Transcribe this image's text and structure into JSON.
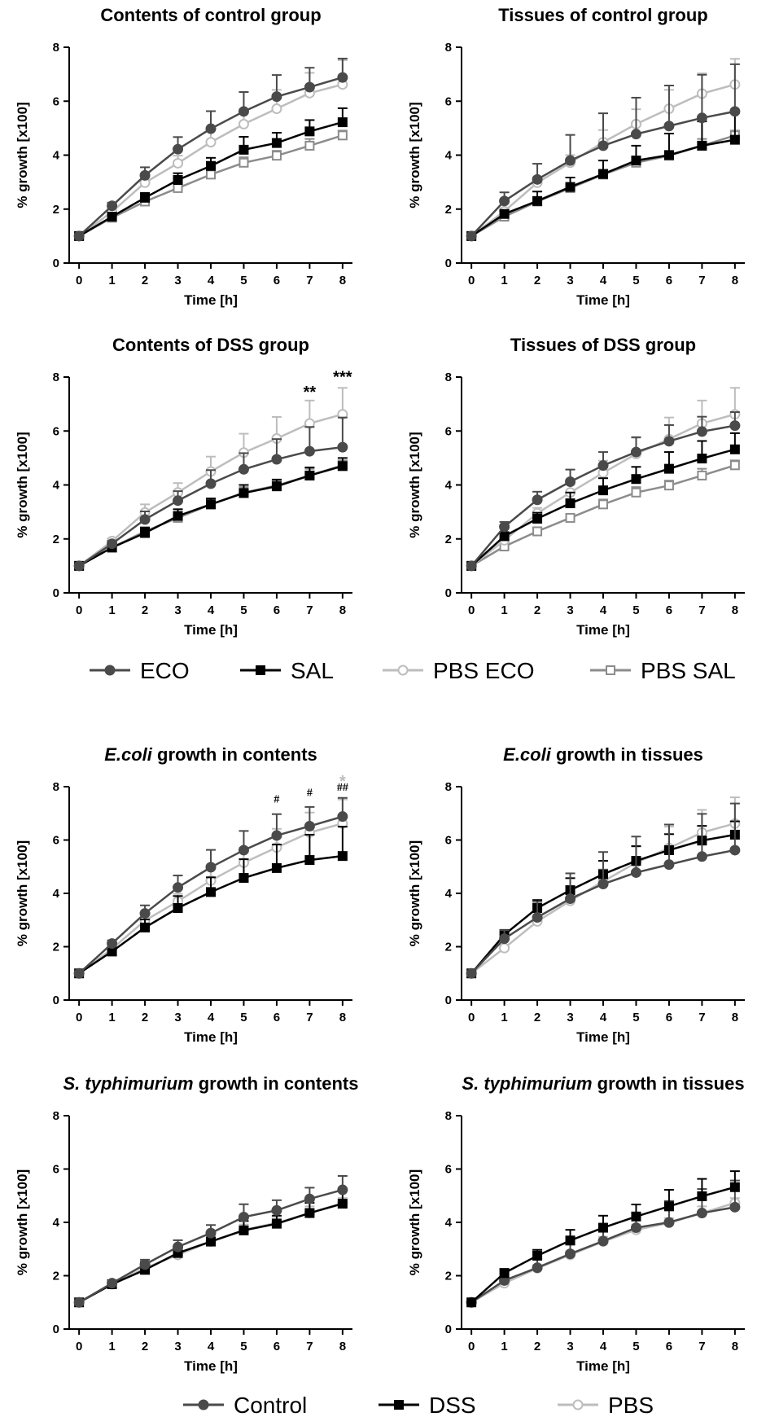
{
  "colors": {
    "ECO": "#4a4a4a",
    "SAL": "#000000",
    "PBS ECO": "#bdbdbd",
    "PBS SAL": "#8c8c8c",
    "Control": "#4a4a4a",
    "DSS": "#000000",
    "PBS": "#bdbdbd"
  },
  "legends": [
    {
      "entries": [
        {
          "label": "ECO",
          "marker": "filled-circle"
        },
        {
          "label": "SAL",
          "marker": "filled-square"
        },
        {
          "label": "PBS ECO",
          "marker": "open-circle"
        },
        {
          "label": "PBS SAL",
          "marker": "open-square"
        }
      ]
    },
    {
      "entries": [
        {
          "label": "Control",
          "marker": "filled-circle"
        },
        {
          "label": "DSS",
          "marker": "filled-square"
        },
        {
          "label": "PBS",
          "marker": "open-circle"
        }
      ]
    }
  ],
  "chart_data": [
    {
      "type": "line",
      "title": "Contents of control group",
      "xlabel": "Time [h]",
      "ylabel": "% growth [x100]",
      "x": [
        0,
        1,
        2,
        3,
        4,
        5,
        6,
        7,
        8
      ],
      "ylim": [
        0,
        8
      ],
      "yticks": [
        0,
        2,
        4,
        6,
        8
      ],
      "series": [
        {
          "name": "PBS SAL",
          "marker": "open-square",
          "values": [
            1.0,
            1.68,
            2.28,
            2.78,
            3.28,
            3.72,
            3.98,
            4.35,
            4.73
          ],
          "errors": [
            0.02,
            0.06,
            0.12,
            0.14,
            0.18,
            0.2,
            0.18,
            0.25,
            0.18
          ]
        },
        {
          "name": "PBS ECO",
          "marker": "open-circle",
          "values": [
            1.0,
            1.9,
            2.98,
            3.7,
            4.48,
            5.15,
            5.72,
            6.3,
            6.62
          ],
          "errors": [
            0.02,
            0.1,
            0.2,
            0.28,
            0.45,
            0.55,
            0.7,
            0.75,
            0.9
          ]
        },
        {
          "name": "SAL",
          "marker": "filled-square",
          "values": [
            1.0,
            1.72,
            2.42,
            3.08,
            3.6,
            4.2,
            4.45,
            4.88,
            5.22
          ],
          "errors": [
            0.02,
            0.08,
            0.18,
            0.25,
            0.3,
            0.48,
            0.38,
            0.42,
            0.52
          ]
        },
        {
          "name": "ECO",
          "marker": "filled-circle",
          "values": [
            1.0,
            2.12,
            3.25,
            4.22,
            4.98,
            5.62,
            6.17,
            6.52,
            6.88
          ],
          "errors": [
            0.02,
            0.12,
            0.3,
            0.45,
            0.65,
            0.72,
            0.8,
            0.72,
            0.7
          ]
        }
      ],
      "annotations": []
    },
    {
      "type": "line",
      "title": "Tissues of control group",
      "xlabel": "Time [h]",
      "ylabel": "% growth [x100]",
      "x": [
        0,
        1,
        2,
        3,
        4,
        5,
        6,
        7,
        8
      ],
      "ylim": [
        0,
        8
      ],
      "yticks": [
        0,
        2,
        4,
        6,
        8
      ],
      "series": [
        {
          "name": "PBS SAL",
          "marker": "open-square",
          "values": [
            1.0,
            1.72,
            2.28,
            2.78,
            3.28,
            3.72,
            3.98,
            4.35,
            4.73
          ],
          "errors": [
            0.02,
            0.06,
            0.12,
            0.14,
            0.18,
            0.2,
            0.18,
            0.25,
            0.18
          ]
        },
        {
          "name": "PBS ECO",
          "marker": "open-circle",
          "values": [
            1.0,
            1.92,
            2.98,
            3.72,
            4.48,
            5.15,
            5.72,
            6.28,
            6.62
          ],
          "errors": [
            0.02,
            0.1,
            0.2,
            0.28,
            0.45,
            0.55,
            0.7,
            0.75,
            0.95
          ]
        },
        {
          "name": "SAL",
          "marker": "filled-square",
          "values": [
            1.0,
            1.82,
            2.3,
            2.82,
            3.3,
            3.8,
            4.0,
            4.35,
            4.57
          ],
          "errors": [
            0.02,
            0.1,
            0.35,
            0.35,
            0.5,
            0.55,
            0.8,
            0.9,
            1.0
          ]
        },
        {
          "name": "ECO",
          "marker": "filled-circle",
          "values": [
            1.0,
            2.3,
            3.1,
            3.8,
            4.35,
            4.78,
            5.08,
            5.38,
            5.62
          ],
          "errors": [
            0.02,
            0.32,
            0.58,
            0.95,
            1.2,
            1.35,
            1.5,
            1.6,
            1.75
          ]
        }
      ],
      "annotations": []
    },
    {
      "type": "line",
      "title": "Contents of DSS group",
      "xlabel": "Time [h]",
      "ylabel": "% growth [x100]",
      "x": [
        0,
        1,
        2,
        3,
        4,
        5,
        6,
        7,
        8
      ],
      "ylim": [
        0,
        8
      ],
      "yticks": [
        0,
        2,
        4,
        6,
        8
      ],
      "series": [
        {
          "name": "PBS SAL",
          "marker": "open-square",
          "values": [
            1.0,
            1.68,
            2.28,
            2.78,
            3.28,
            3.72,
            3.98,
            4.35,
            4.73
          ],
          "errors": [
            0.02,
            0.06,
            0.12,
            0.14,
            0.18,
            0.2,
            0.18,
            0.25,
            0.18
          ]
        },
        {
          "name": "PBS ECO",
          "marker": "open-circle",
          "values": [
            1.0,
            1.92,
            2.98,
            3.72,
            4.5,
            5.2,
            5.72,
            6.28,
            6.62
          ],
          "errors": [
            0.02,
            0.1,
            0.3,
            0.35,
            0.55,
            0.7,
            0.8,
            0.85,
            0.98
          ]
        },
        {
          "name": "SAL",
          "marker": "filled-square",
          "values": [
            1.0,
            1.68,
            2.22,
            2.85,
            3.28,
            3.7,
            3.95,
            4.35,
            4.7
          ],
          "errors": [
            0.02,
            0.08,
            0.2,
            0.25,
            0.22,
            0.3,
            0.25,
            0.3,
            0.3
          ]
        },
        {
          "name": "ECO",
          "marker": "filled-circle",
          "values": [
            1.0,
            1.82,
            2.72,
            3.42,
            4.05,
            4.58,
            4.95,
            5.25,
            5.4
          ],
          "errors": [
            0.02,
            0.1,
            0.3,
            0.35,
            0.5,
            0.6,
            0.75,
            0.9,
            1.1
          ]
        }
      ],
      "annotations": [
        {
          "x": 7,
          "y": 7.55,
          "text": "**",
          "color": "#000000"
        },
        {
          "x": 8,
          "y": 8.1,
          "text": "***",
          "color": "#000000"
        }
      ]
    },
    {
      "type": "line",
      "title": "Tissues of DSS group",
      "xlabel": "Time [h]",
      "ylabel": "% growth [x100]",
      "x": [
        0,
        1,
        2,
        3,
        4,
        5,
        6,
        7,
        8
      ],
      "ylim": [
        0,
        8
      ],
      "yticks": [
        0,
        2,
        4,
        6,
        8
      ],
      "series": [
        {
          "name": "PBS SAL",
          "marker": "open-square",
          "values": [
            1.0,
            1.72,
            2.28,
            2.78,
            3.28,
            3.72,
            3.98,
            4.35,
            4.73
          ],
          "errors": [
            0.02,
            0.06,
            0.12,
            0.14,
            0.18,
            0.2,
            0.18,
            0.25,
            0.18
          ]
        },
        {
          "name": "PBS ECO",
          "marker": "open-circle",
          "values": [
            1.0,
            1.95,
            2.95,
            3.72,
            4.45,
            5.15,
            5.7,
            6.28,
            6.62
          ],
          "errors": [
            0.02,
            0.1,
            0.2,
            0.3,
            0.45,
            0.6,
            0.8,
            0.85,
            0.98
          ]
        },
        {
          "name": "SAL",
          "marker": "filled-square",
          "values": [
            1.0,
            2.1,
            2.75,
            3.32,
            3.8,
            4.22,
            4.6,
            4.98,
            5.32
          ],
          "errors": [
            0.02,
            0.15,
            0.22,
            0.4,
            0.45,
            0.45,
            0.62,
            0.65,
            0.6
          ]
        },
        {
          "name": "ECO",
          "marker": "filled-circle",
          "values": [
            1.0,
            2.45,
            3.45,
            4.12,
            4.72,
            5.22,
            5.62,
            5.98,
            6.2
          ],
          "errors": [
            0.02,
            0.18,
            0.3,
            0.45,
            0.5,
            0.55,
            0.6,
            0.55,
            0.5
          ]
        }
      ],
      "annotations": []
    },
    {
      "type": "line",
      "title": "E.coli growth in contents",
      "title_italic": "E.coli",
      "title_rest": " growth in contents",
      "xlabel": "Time [h]",
      "ylabel": "% growth [x100]",
      "x": [
        0,
        1,
        2,
        3,
        4,
        5,
        6,
        7,
        8
      ],
      "ylim": [
        0,
        8
      ],
      "yticks": [
        0,
        2,
        4,
        6,
        8
      ],
      "series": [
        {
          "name": "PBS",
          "marker": "open-circle",
          "values": [
            1.0,
            1.92,
            2.98,
            3.7,
            4.48,
            5.15,
            5.72,
            6.28,
            6.62
          ],
          "errors": [
            0.02,
            0.1,
            0.2,
            0.28,
            0.45,
            0.55,
            0.7,
            0.75,
            0.9
          ]
        },
        {
          "name": "DSS",
          "marker": "filled-square",
          "values": [
            1.0,
            1.82,
            2.72,
            3.45,
            4.05,
            4.58,
            4.95,
            5.25,
            5.4
          ],
          "errors": [
            0.02,
            0.12,
            0.3,
            0.45,
            0.55,
            0.7,
            0.88,
            0.95,
            1.1
          ]
        },
        {
          "name": "Control",
          "marker": "filled-circle",
          "values": [
            1.0,
            2.12,
            3.25,
            4.22,
            4.98,
            5.62,
            6.17,
            6.52,
            6.88
          ],
          "errors": [
            0.02,
            0.12,
            0.3,
            0.45,
            0.65,
            0.72,
            0.8,
            0.72,
            0.7
          ]
        }
      ],
      "annotations": [
        {
          "x": 6,
          "y": 7.4,
          "text": "#",
          "color": "#000000"
        },
        {
          "x": 7,
          "y": 7.65,
          "text": "#",
          "color": "#000000"
        },
        {
          "x": 8,
          "y": 7.85,
          "text": "##",
          "color": "#000000"
        },
        {
          "x": 8,
          "y": 8.3,
          "text": "*",
          "color": "#bdbdbd"
        }
      ]
    },
    {
      "type": "line",
      "title": "E.coli growth in tissues",
      "title_italic": "E.coli",
      "title_rest": " growth in tissues",
      "xlabel": "Time [h]",
      "ylabel": "% growth [x100]",
      "x": [
        0,
        1,
        2,
        3,
        4,
        5,
        6,
        7,
        8
      ],
      "ylim": [
        0,
        8
      ],
      "yticks": [
        0,
        2,
        4,
        6,
        8
      ],
      "series": [
        {
          "name": "PBS",
          "marker": "open-circle",
          "values": [
            1.0,
            1.95,
            2.95,
            3.72,
            4.45,
            5.15,
            5.7,
            6.28,
            6.62
          ],
          "errors": [
            0.02,
            0.1,
            0.2,
            0.3,
            0.45,
            0.6,
            0.8,
            0.85,
            0.98
          ]
        },
        {
          "name": "DSS",
          "marker": "filled-square",
          "values": [
            1.0,
            2.45,
            3.45,
            4.12,
            4.72,
            5.22,
            5.62,
            5.98,
            6.2
          ],
          "errors": [
            0.02,
            0.18,
            0.3,
            0.45,
            0.5,
            0.55,
            0.6,
            0.55,
            0.5
          ]
        },
        {
          "name": "Control",
          "marker": "filled-circle",
          "values": [
            1.0,
            2.3,
            3.1,
            3.8,
            4.35,
            4.78,
            5.08,
            5.38,
            5.62
          ],
          "errors": [
            0.02,
            0.32,
            0.58,
            0.95,
            1.2,
            1.35,
            1.5,
            1.6,
            1.75
          ]
        }
      ],
      "annotations": []
    },
    {
      "type": "line",
      "title": "S. typhimurium growth in contents",
      "title_italic": "S. typhimurium",
      "title_rest": " growth in contents",
      "xlabel": "Time [h]",
      "ylabel": "% growth [x100]",
      "x": [
        0,
        1,
        2,
        3,
        4,
        5,
        6,
        7,
        8
      ],
      "ylim": [
        0,
        8
      ],
      "yticks": [
        0,
        2,
        4,
        6,
        8
      ],
      "series": [
        {
          "name": "PBS",
          "marker": "open-circle",
          "values": [
            1.0,
            1.68,
            2.28,
            2.78,
            3.28,
            3.72,
            3.98,
            4.35,
            4.73
          ],
          "errors": [
            0.02,
            0.06,
            0.12,
            0.14,
            0.18,
            0.2,
            0.18,
            0.25,
            0.18
          ]
        },
        {
          "name": "DSS",
          "marker": "filled-square",
          "values": [
            1.0,
            1.68,
            2.22,
            2.85,
            3.28,
            3.7,
            3.95,
            4.35,
            4.7
          ],
          "errors": [
            0.02,
            0.08,
            0.3,
            0.25,
            0.3,
            0.35,
            0.3,
            0.38,
            0.52
          ]
        },
        {
          "name": "Control",
          "marker": "filled-circle",
          "values": [
            1.0,
            1.72,
            2.42,
            3.08,
            3.6,
            4.2,
            4.45,
            4.88,
            5.22
          ],
          "errors": [
            0.02,
            0.08,
            0.18,
            0.25,
            0.3,
            0.48,
            0.38,
            0.42,
            0.52
          ]
        }
      ],
      "annotations": []
    },
    {
      "type": "line",
      "title": "S. typhimurium growth in tissues",
      "title_italic": "S. typhimurium",
      "title_rest": " growth in tissues",
      "xlabel": "Time [h]",
      "ylabel": "% growth [x100]",
      "x": [
        0,
        1,
        2,
        3,
        4,
        5,
        6,
        7,
        8
      ],
      "ylim": [
        0,
        8
      ],
      "yticks": [
        0,
        2,
        4,
        6,
        8
      ],
      "series": [
        {
          "name": "PBS",
          "marker": "open-circle",
          "values": [
            1.0,
            1.72,
            2.28,
            2.78,
            3.28,
            3.72,
            3.98,
            4.35,
            4.73
          ],
          "errors": [
            0.02,
            0.06,
            0.12,
            0.14,
            0.18,
            0.2,
            0.18,
            0.25,
            0.18
          ]
        },
        {
          "name": "Control",
          "marker": "filled-circle",
          "values": [
            1.0,
            1.82,
            2.3,
            2.82,
            3.3,
            3.8,
            4.0,
            4.35,
            4.57
          ],
          "errors": [
            0.02,
            0.1,
            0.35,
            0.35,
            0.5,
            0.55,
            0.8,
            0.9,
            1.0
          ]
        },
        {
          "name": "DSS",
          "marker": "filled-square",
          "values": [
            1.0,
            2.1,
            2.75,
            3.32,
            3.8,
            4.22,
            4.6,
            4.98,
            5.32
          ],
          "errors": [
            0.02,
            0.15,
            0.22,
            0.4,
            0.45,
            0.45,
            0.62,
            0.65,
            0.6
          ]
        }
      ],
      "annotations": []
    }
  ]
}
